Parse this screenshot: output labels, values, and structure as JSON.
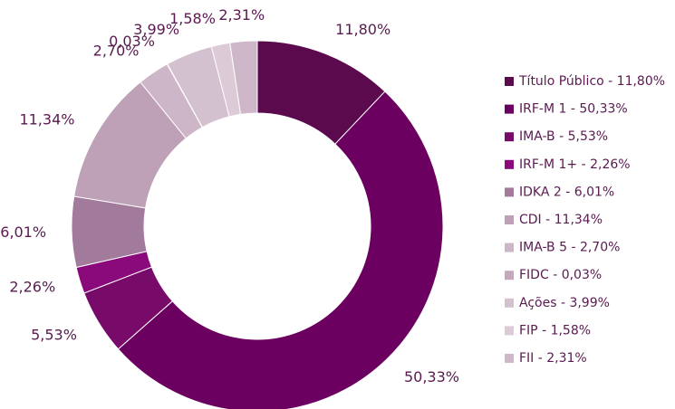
{
  "chart_data": {
    "type": "donut",
    "categories": [
      "Título Público - 11,80%",
      "IRF-M 1 - 50,33%",
      "IMA-B - 5,53%",
      "IRF-M 1+ - 2,26%",
      "IDKA 2 - 6,01%",
      "CDI - 11,34%",
      "IMA-B 5 - 2,70%",
      "FIDC - 0,03%",
      "Ações - 3,99%",
      "FIP - 1,58%",
      "FII - 2,31%"
    ],
    "values": [
      11.8,
      50.33,
      5.53,
      2.26,
      6.01,
      11.34,
      2.7,
      0.03,
      3.99,
      1.58,
      2.31
    ],
    "value_labels": [
      "11,80%",
      "50,33%",
      "5,53%",
      "2,26%",
      "6,01%",
      "11,34%",
      "2,70%",
      "0,03%",
      "3,99%",
      "1,58%",
      "2,31%"
    ],
    "colors": [
      "#5b0a4e",
      "#6b0060",
      "#780a69",
      "#8a0a7b",
      "#a27a9c",
      "#bea0b7",
      "#cdb6c8",
      "#c4a8be",
      "#d4c1cf",
      "#dccad6",
      "#cdb7c9"
    ],
    "legend_position": "right"
  }
}
